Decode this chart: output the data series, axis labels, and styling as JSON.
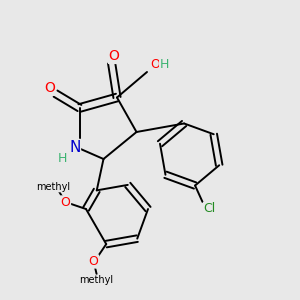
{
  "background_color": "#e8e8e8",
  "figsize": [
    3.0,
    3.0
  ],
  "dpi": 100,
  "atom_colors": {
    "O": "#ff0000",
    "N": "#0000cd",
    "Cl": "#228b22",
    "C": "#000000",
    "H": "#3cb371"
  },
  "bond_lw": 1.4,
  "dbo": 0.014
}
